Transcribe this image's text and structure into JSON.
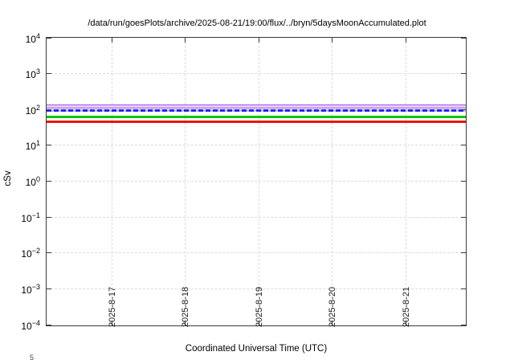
{
  "chart": {
    "title": "/data/run/goesPlots/archive/2025-08-21/19:00/flux/../bryn/5daysMoonAccumulated.plot",
    "xlabel": "Coordinated Universal Time (UTC)",
    "ylabel": "cSv",
    "corner_fragment": "5"
  },
  "axes": {
    "y": {
      "base": "10",
      "scale": "log",
      "ticks": [
        {
          "exp": "4"
        },
        {
          "exp": "3"
        },
        {
          "exp": "2"
        },
        {
          "exp": "1"
        },
        {
          "exp": "0"
        },
        {
          "exp": "−1"
        },
        {
          "exp": "−2"
        },
        {
          "exp": "−3"
        },
        {
          "exp": "−4"
        }
      ]
    },
    "x": {
      "ticks": [
        {
          "label": "2025-8-17"
        },
        {
          "label": "2025-8-18"
        },
        {
          "label": "2025-8-19"
        },
        {
          "label": "2025-8-20"
        },
        {
          "label": "2025-8-21"
        }
      ]
    }
  },
  "chart_data": {
    "type": "line",
    "title": "/data/run/goesPlots/archive/2025-08-21/19:00/flux/../bryn/5daysMoonAccumulated.plot",
    "xlabel": "Coordinated Universal Time (UTC)",
    "ylabel": "cSv",
    "x_ticks": [
      "2025-8-17",
      "2025-8-18",
      "2025-8-19",
      "2025-8-20",
      "2025-8-21"
    ],
    "y_scale": "log10",
    "ylim": [
      0.0001,
      10000
    ],
    "grid": true,
    "note": "All series are constant (flat horizontal lines) across the full 5-day time range",
    "series": [
      {
        "name": "violet-envelope-band",
        "style": "band",
        "color": "#a659e0",
        "fill": "#e6ccf7",
        "value_range_cSv": [
          105,
          140
        ]
      },
      {
        "name": "blue-dashed-line",
        "style": "dashed",
        "color": "#2323f0",
        "gap_color": "#bdbdff",
        "value_cSv": 92
      },
      {
        "name": "green-line",
        "style": "solid",
        "color": "#00c800",
        "value_cSv": 62
      },
      {
        "name": "red-line",
        "style": "solid",
        "color": "#ee1212",
        "value_cSv": 46
      }
    ]
  },
  "colors": {
    "background": "#ffffff",
    "axis_border": "#3a3a3a",
    "grid": "#dcdcdc",
    "text": "#000000"
  }
}
